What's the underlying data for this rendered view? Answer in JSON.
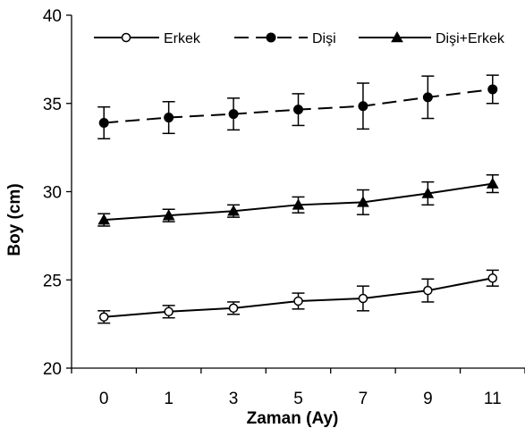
{
  "chart_data": {
    "type": "line",
    "categories": [
      "0",
      "1",
      "3",
      "5",
      "7",
      "9",
      "11"
    ],
    "xlabel": "Zaman (Ay)",
    "ylabel": "Boy (cm)",
    "ylim": [
      20,
      40
    ],
    "yticks": [
      20,
      25,
      30,
      35,
      40
    ],
    "grid": false,
    "legend_position": "top",
    "series": [
      {
        "name": "Erkek",
        "marker": "open-circle",
        "line_style": "solid",
        "values": [
          22.9,
          23.2,
          23.4,
          23.8,
          23.95,
          24.4,
          25.1
        ],
        "error": [
          0.35,
          0.35,
          0.35,
          0.45,
          0.7,
          0.65,
          0.45
        ]
      },
      {
        "name": "Dişi",
        "marker": "filled-circle",
        "line_style": "dashed",
        "values": [
          33.9,
          34.2,
          34.4,
          34.65,
          34.85,
          35.35,
          35.8
        ],
        "error": [
          0.9,
          0.9,
          0.9,
          0.9,
          1.3,
          1.2,
          0.8
        ]
      },
      {
        "name": "Dişi+Erkek",
        "marker": "filled-triangle",
        "line_style": "solid",
        "values": [
          28.4,
          28.65,
          28.9,
          29.25,
          29.4,
          29.9,
          30.45
        ],
        "error": [
          0.35,
          0.35,
          0.35,
          0.45,
          0.7,
          0.65,
          0.5
        ]
      }
    ],
    "colors": {
      "line": "#000000",
      "background": "#ffffff"
    }
  }
}
